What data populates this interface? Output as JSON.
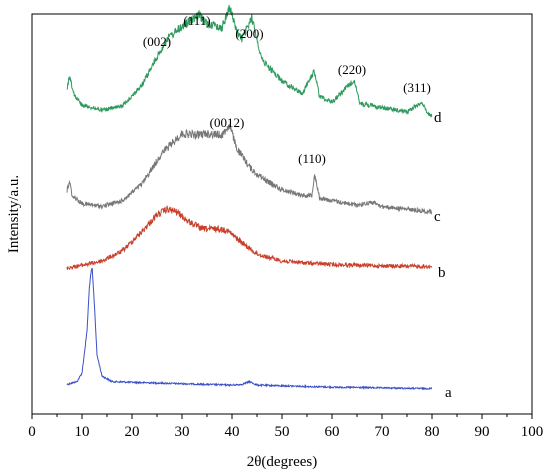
{
  "chart_data": {
    "type": "line",
    "xlabel": "2θ(degrees)",
    "ylabel": "Intensity/a.u.",
    "xlim": [
      0,
      100
    ],
    "x_ticks": [
      "0",
      "10",
      "20",
      "30",
      "40",
      "50",
      "60",
      "70",
      "80",
      "90",
      "100"
    ],
    "y_ticks_labeled": false,
    "grid": false,
    "legend": "none",
    "series": [
      {
        "name": "a",
        "color": "#3a4fc4",
        "x": [
          7,
          9,
          10,
          11,
          11.5,
          12,
          12.5,
          13,
          14,
          16,
          20,
          25,
          30,
          35,
          40,
          42,
          43.5,
          45,
          50,
          55,
          60,
          65,
          70,
          75,
          80
        ],
        "y": [
          0.04,
          0.06,
          0.12,
          0.42,
          0.75,
          0.88,
          0.6,
          0.25,
          0.1,
          0.06,
          0.055,
          0.05,
          0.045,
          0.04,
          0.035,
          0.04,
          0.06,
          0.035,
          0.03,
          0.025,
          0.02,
          0.018,
          0.015,
          0.012,
          0.01
        ]
      },
      {
        "name": "b",
        "color": "#c8402c",
        "x": [
          7,
          10,
          14,
          18,
          22,
          25,
          27,
          29,
          31,
          34,
          37,
          39,
          42,
          45,
          50,
          55,
          60,
          65,
          70,
          75,
          80
        ],
        "y": [
          0.0,
          0.02,
          0.05,
          0.12,
          0.26,
          0.38,
          0.42,
          0.4,
          0.34,
          0.28,
          0.28,
          0.27,
          0.18,
          0.1,
          0.05,
          0.035,
          0.025,
          0.02,
          0.015,
          0.012,
          0.01
        ]
      },
      {
        "name": "c",
        "color": "#777777",
        "x": [
          7,
          7.5,
          8,
          10,
          14,
          18,
          22,
          26,
          30,
          33,
          35,
          38,
          39.5,
          41,
          44,
          47,
          50,
          54,
          56,
          56.5,
          57.5,
          60,
          65,
          68,
          70,
          75,
          80
        ],
        "y": [
          0.15,
          0.22,
          0.12,
          0.06,
          0.04,
          0.08,
          0.2,
          0.42,
          0.56,
          0.55,
          0.56,
          0.55,
          0.62,
          0.45,
          0.3,
          0.22,
          0.16,
          0.12,
          0.12,
          0.28,
          0.1,
          0.08,
          0.05,
          0.07,
          0.04,
          0.02,
          0.0
        ]
      },
      {
        "name": "d",
        "color": "#2f9a5e",
        "x": [
          7,
          7.5,
          8.5,
          10,
          14,
          18,
          22,
          25,
          27,
          30,
          33.5,
          35,
          38,
          39.5,
          41,
          42,
          44,
          46,
          50,
          54,
          56.5,
          57.5,
          60,
          64.5,
          65.5,
          70,
          75,
          78,
          79,
          80
        ],
        "y": [
          0.2,
          0.28,
          0.15,
          0.08,
          0.04,
          0.07,
          0.22,
          0.42,
          0.55,
          0.64,
          0.72,
          0.66,
          0.63,
          0.78,
          0.6,
          0.55,
          0.7,
          0.4,
          0.25,
          0.16,
          0.32,
          0.14,
          0.1,
          0.26,
          0.09,
          0.06,
          0.03,
          0.1,
          0.02,
          0.0
        ]
      }
    ],
    "annotations": [
      {
        "text": "(002)",
        "series": "d",
        "x": 25
      },
      {
        "text": "(111)",
        "series": "d",
        "x": 33
      },
      {
        "text": "(200)",
        "series": "d",
        "x": 43.5
      },
      {
        "text": "(220)",
        "series": "d",
        "x": 64
      },
      {
        "text": "(311)",
        "series": "d",
        "x": 77
      },
      {
        "text": "(0012)",
        "series": "c",
        "x": 39
      },
      {
        "text": "(110)",
        "series": "c",
        "x": 56
      }
    ]
  }
}
